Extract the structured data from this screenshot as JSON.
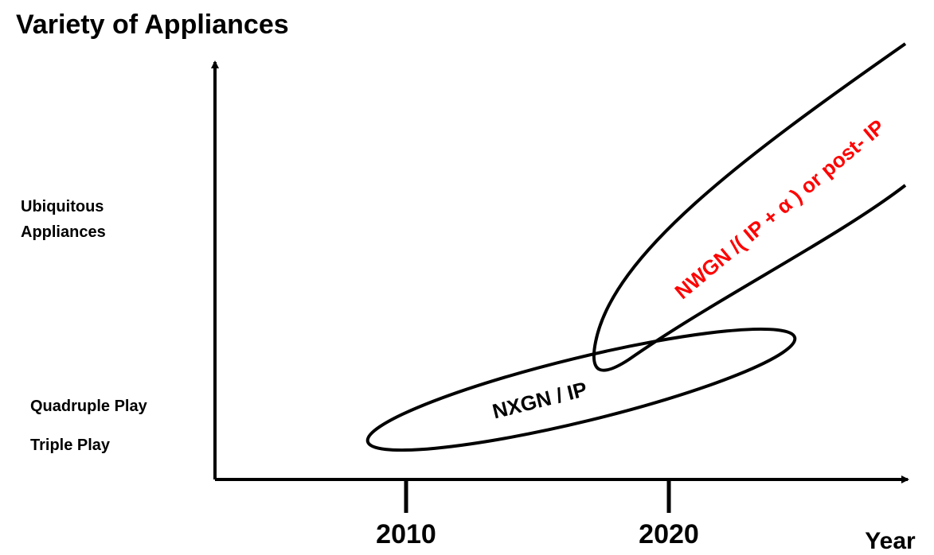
{
  "title": "Variety of Appliances",
  "y_labels": {
    "ubiquitous": [
      "Ubiquitous",
      "Appliances"
    ],
    "quadruple": "Quadruple Play",
    "triple": "Triple Play"
  },
  "x_labels": {
    "first": "2010",
    "second": "2020",
    "axis": "Year"
  },
  "regions": {
    "current": "NXGN / IP",
    "future": "NWGN /( IP + α ) or post- IP"
  }
}
